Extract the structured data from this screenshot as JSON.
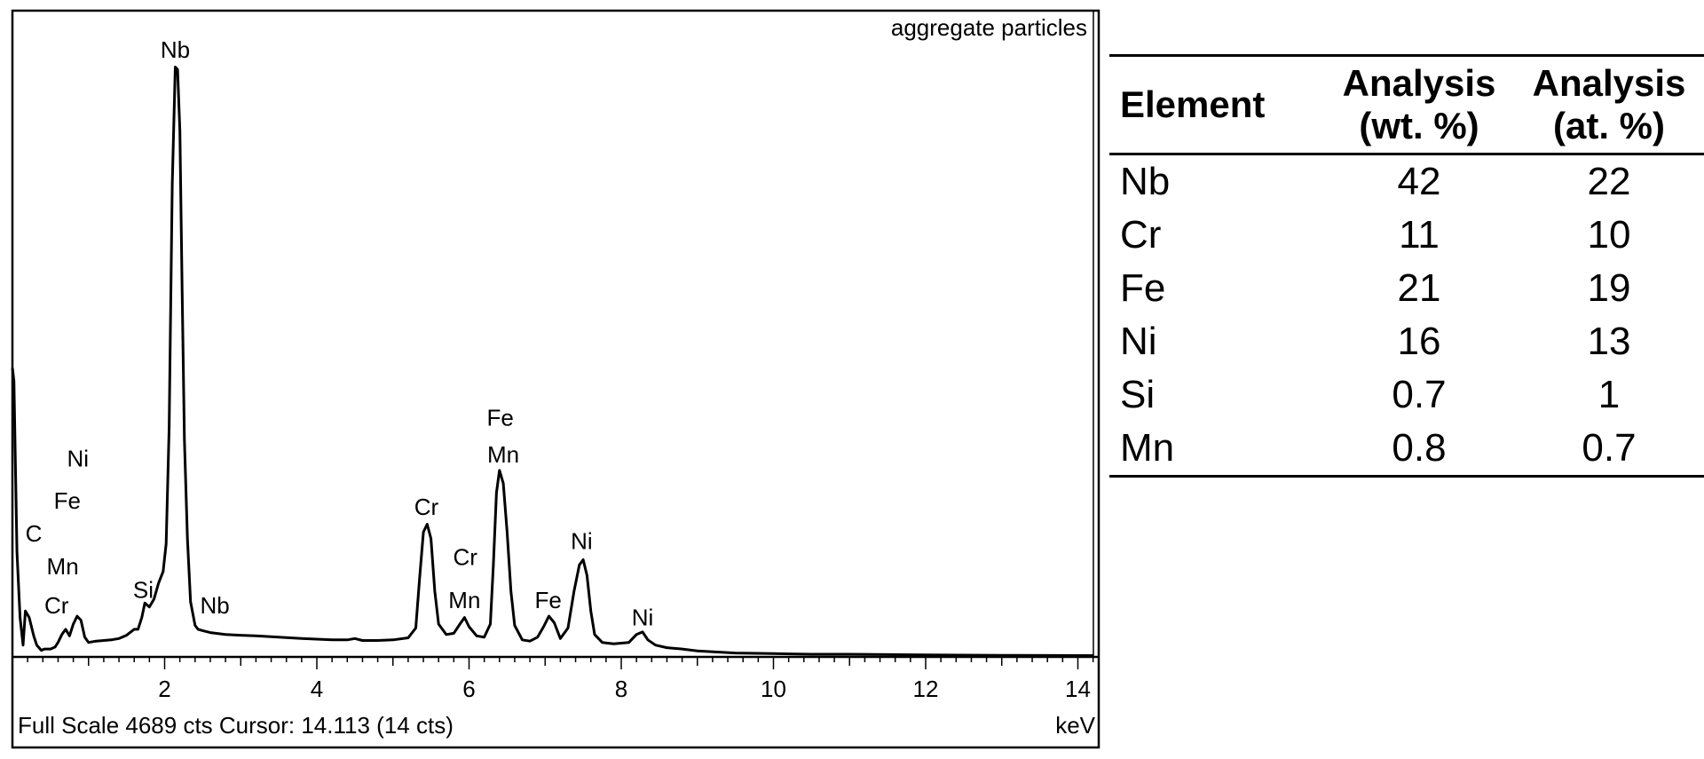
{
  "chart_data": {
    "type": "line",
    "title": "aggregate particles",
    "xlabel": "keV",
    "footer": "Full Scale 4689 cts Cursor: 14.113  (14 cts)",
    "xlim": [
      0,
      14.2
    ],
    "ylim": [
      0,
      4689
    ],
    "grid": false,
    "x_ticks": [
      "2",
      "4",
      "6",
      "8",
      "10",
      "12",
      "14"
    ],
    "spectrum": [
      [
        0.0,
        2200
      ],
      [
        0.02,
        2100
      ],
      [
        0.06,
        800
      ],
      [
        0.1,
        300
      ],
      [
        0.14,
        90
      ],
      [
        0.17,
        350
      ],
      [
        0.22,
        300
      ],
      [
        0.28,
        160
      ],
      [
        0.32,
        90
      ],
      [
        0.38,
        50
      ],
      [
        0.42,
        60
      ],
      [
        0.5,
        60
      ],
      [
        0.56,
        75
      ],
      [
        0.6,
        110
      ],
      [
        0.65,
        170
      ],
      [
        0.7,
        210
      ],
      [
        0.75,
        160
      ],
      [
        0.8,
        250
      ],
      [
        0.85,
        310
      ],
      [
        0.9,
        280
      ],
      [
        0.95,
        150
      ],
      [
        1.0,
        110
      ],
      [
        1.1,
        120
      ],
      [
        1.2,
        125
      ],
      [
        1.3,
        130
      ],
      [
        1.4,
        140
      ],
      [
        1.5,
        165
      ],
      [
        1.6,
        210
      ],
      [
        1.65,
        210
      ],
      [
        1.7,
        300
      ],
      [
        1.74,
        410
      ],
      [
        1.8,
        380
      ],
      [
        1.86,
        440
      ],
      [
        1.92,
        560
      ],
      [
        1.98,
        650
      ],
      [
        2.02,
        860
      ],
      [
        2.06,
        1750
      ],
      [
        2.1,
        3600
      ],
      [
        2.14,
        4490
      ],
      [
        2.17,
        4470
      ],
      [
        2.2,
        4000
      ],
      [
        2.23,
        2800
      ],
      [
        2.26,
        1650
      ],
      [
        2.3,
        900
      ],
      [
        2.34,
        420
      ],
      [
        2.4,
        240
      ],
      [
        2.44,
        210
      ],
      [
        2.5,
        200
      ],
      [
        2.6,
        185
      ],
      [
        2.8,
        170
      ],
      [
        3.0,
        165
      ],
      [
        3.2,
        160
      ],
      [
        3.5,
        150
      ],
      [
        3.8,
        140
      ],
      [
        4.0,
        135
      ],
      [
        4.2,
        130
      ],
      [
        4.4,
        130
      ],
      [
        4.5,
        140
      ],
      [
        4.6,
        125
      ],
      [
        4.8,
        125
      ],
      [
        5.0,
        130
      ],
      [
        5.2,
        145
      ],
      [
        5.3,
        220
      ],
      [
        5.35,
        600
      ],
      [
        5.4,
        950
      ],
      [
        5.45,
        1010
      ],
      [
        5.5,
        900
      ],
      [
        5.55,
        500
      ],
      [
        5.6,
        250
      ],
      [
        5.7,
        170
      ],
      [
        5.8,
        180
      ],
      [
        5.88,
        250
      ],
      [
        5.94,
        300
      ],
      [
        6.0,
        230
      ],
      [
        6.1,
        160
      ],
      [
        6.2,
        150
      ],
      [
        6.28,
        250
      ],
      [
        6.32,
        700
      ],
      [
        6.36,
        1250
      ],
      [
        6.4,
        1420
      ],
      [
        6.45,
        1320
      ],
      [
        6.5,
        950
      ],
      [
        6.55,
        500
      ],
      [
        6.6,
        240
      ],
      [
        6.7,
        130
      ],
      [
        6.8,
        120
      ],
      [
        6.9,
        150
      ],
      [
        6.98,
        230
      ],
      [
        7.05,
        310
      ],
      [
        7.12,
        260
      ],
      [
        7.2,
        140
      ],
      [
        7.3,
        220
      ],
      [
        7.38,
        500
      ],
      [
        7.45,
        700
      ],
      [
        7.5,
        740
      ],
      [
        7.55,
        620
      ],
      [
        7.6,
        350
      ],
      [
        7.65,
        170
      ],
      [
        7.75,
        110
      ],
      [
        7.9,
        100
      ],
      [
        8.1,
        110
      ],
      [
        8.2,
        170
      ],
      [
        8.28,
        190
      ],
      [
        8.35,
        130
      ],
      [
        8.45,
        90
      ],
      [
        8.6,
        70
      ],
      [
        8.8,
        60
      ],
      [
        9.0,
        45
      ],
      [
        9.5,
        30
      ],
      [
        10.0,
        25
      ],
      [
        10.5,
        20
      ],
      [
        11.0,
        20
      ],
      [
        12.0,
        15
      ],
      [
        13.0,
        12
      ],
      [
        14.2,
        10
      ]
    ],
    "peak_labels": [
      {
        "text": "Nb",
        "x": 2.14,
        "y": 4560
      },
      {
        "text": "aggregate particles",
        "x": 0,
        "y": 0,
        "role": "title"
      },
      {
        "text": "Ni",
        "x": 0.86,
        "y": 1450
      },
      {
        "text": "Fe",
        "x": 0.72,
        "y": 1130
      },
      {
        "text": "C",
        "x": 0.28,
        "y": 880
      },
      {
        "text": "Mn",
        "x": 0.66,
        "y": 630
      },
      {
        "text": "Cr",
        "x": 0.58,
        "y": 330
      },
      {
        "text": "Si",
        "x": 1.72,
        "y": 450
      },
      {
        "text": "Nb",
        "x": 2.66,
        "y": 330
      },
      {
        "text": "Cr",
        "x": 5.44,
        "y": 1080
      },
      {
        "text": "Fe",
        "x": 6.41,
        "y": 1760
      },
      {
        "text": "Mn",
        "x": 6.45,
        "y": 1480
      },
      {
        "text": "Cr",
        "x": 5.95,
        "y": 700
      },
      {
        "text": "Mn",
        "x": 5.94,
        "y": 370
      },
      {
        "text": "Fe",
        "x": 7.04,
        "y": 370
      },
      {
        "text": "Ni",
        "x": 7.48,
        "y": 820
      },
      {
        "text": "Ni",
        "x": 8.28,
        "y": 240
      }
    ]
  },
  "table": {
    "headers": {
      "element": "Element",
      "wt_line1": "Analysis",
      "wt_line2": "(wt. %)",
      "at_line1": "Analysis",
      "at_line2": "(at. %)"
    },
    "rows": [
      {
        "element": "Nb",
        "wt": "42",
        "at": "22"
      },
      {
        "element": "Cr",
        "wt": "11",
        "at": "10"
      },
      {
        "element": "Fe",
        "wt": "21",
        "at": "19"
      },
      {
        "element": "Ni",
        "wt": "16",
        "at": "13"
      },
      {
        "element": "Si",
        "wt": "0.7",
        "at": "1"
      },
      {
        "element": "Mn",
        "wt": "0.8",
        "at": "0.7"
      }
    ]
  }
}
